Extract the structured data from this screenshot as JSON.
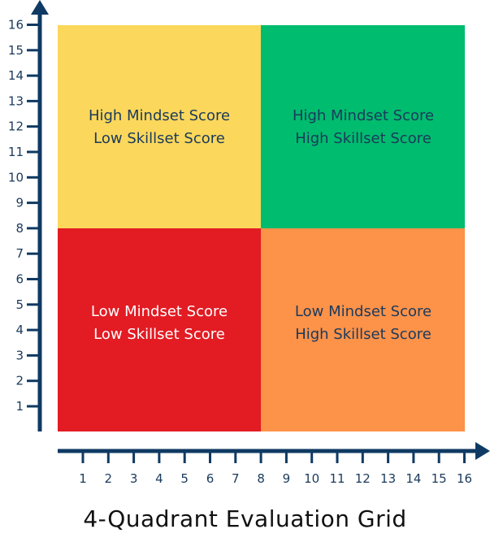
{
  "colors": {
    "axis": "#0f3a63",
    "top_left": "#fbd75b",
    "top_right": "#00bc6e",
    "bottom_left": "#e31b23",
    "bottom_right": "#fd9249",
    "text_dark": "#1a3a5c",
    "text_light": "#ffffff"
  },
  "quadrants": {
    "top_left": {
      "line1": "High Mindset Score",
      "line2": "Low Skillset Score"
    },
    "top_right": {
      "line1": "High Mindset Score",
      "line2": "High Skillset Score"
    },
    "bottom_left": {
      "line1": "Low Mindset Score",
      "line2": "Low Skillset Score"
    },
    "bottom_right": {
      "line1": "Low Mindset Score",
      "line2": "High Skillset Score"
    }
  },
  "axes": {
    "x_ticks": [
      "1",
      "2",
      "3",
      "4",
      "5",
      "6",
      "7",
      "8",
      "9",
      "10",
      "11",
      "12",
      "13",
      "14",
      "15",
      "16"
    ],
    "y_ticks": [
      "1",
      "2",
      "3",
      "4",
      "5",
      "6",
      "7",
      "8",
      "9",
      "10",
      "11",
      "12",
      "13",
      "14",
      "15",
      "16"
    ]
  },
  "caption": "4-Quadrant Evaluation Grid"
}
